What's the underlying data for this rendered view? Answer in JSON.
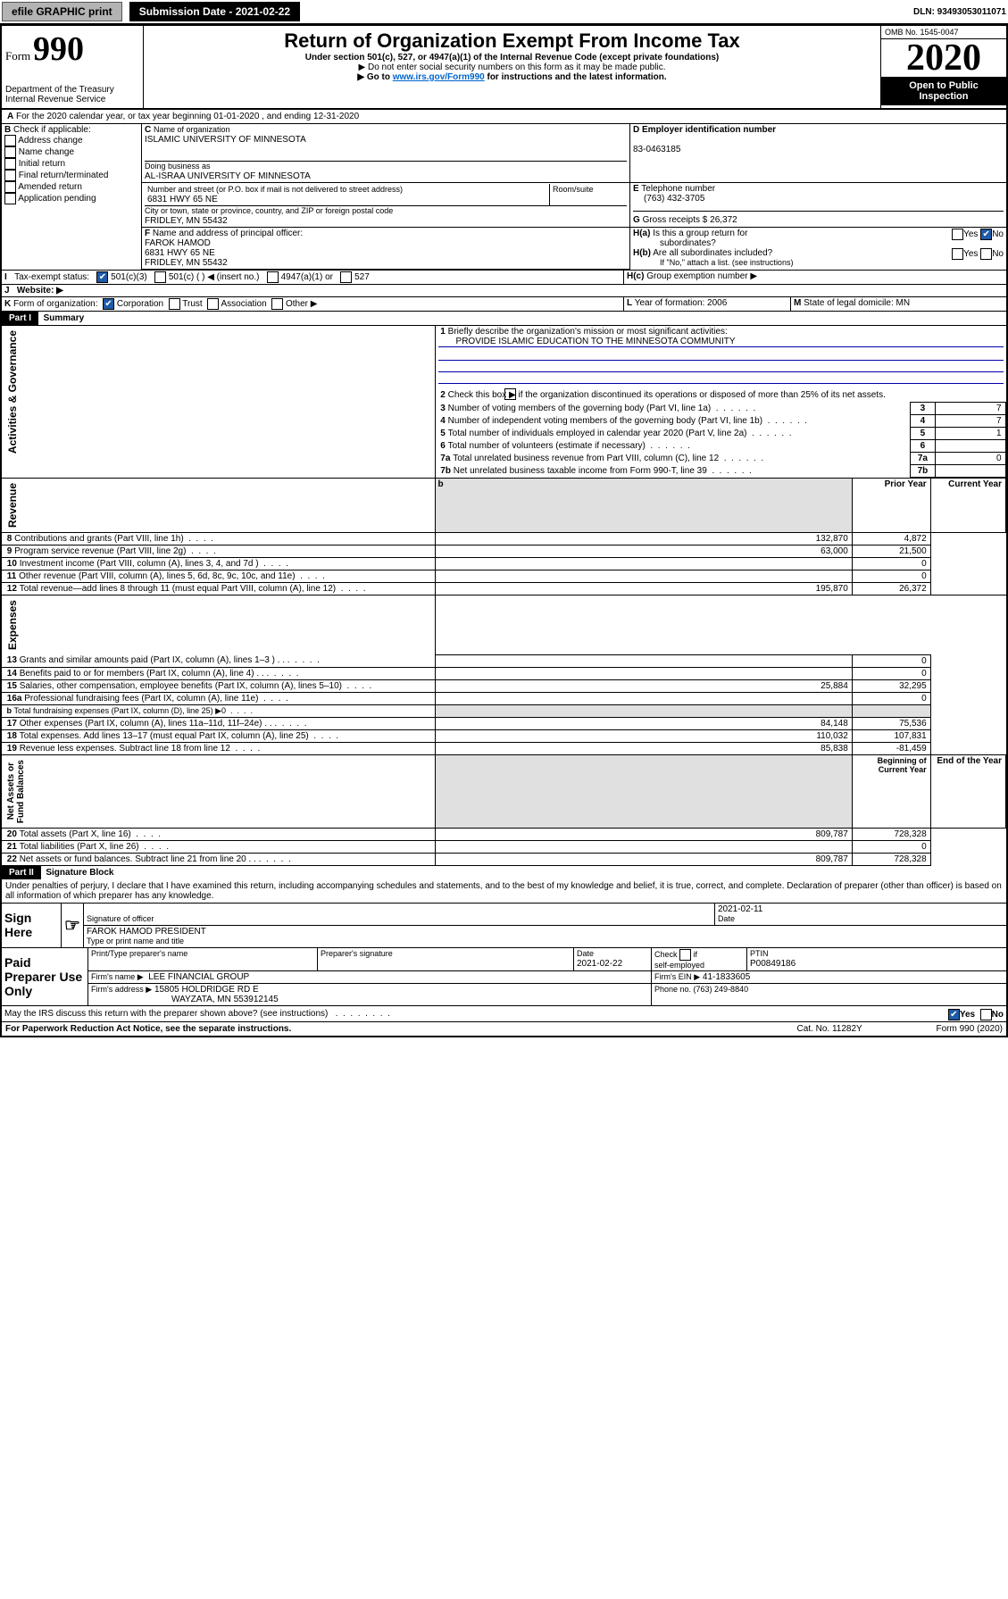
{
  "hdr": {
    "efile": "efile GRAPHIC print",
    "submission": "Submission Date - 2021-02-22",
    "dln": "DLN: 93493053011071"
  },
  "top": {
    "formNo": "990",
    "formWord": "Form",
    "title": "Return of Organization Exempt From Income Tax",
    "sub1": "Under section 501(c), 527, or 4947(a)(1) of the Internal Revenue Code (except private foundations)",
    "sub2": "▶ Do not enter social security numbers on this form as it may be made public.",
    "sub3a": "▶ Go to ",
    "sub3link": "www.irs.gov/Form990",
    "sub3b": " for instructions and the latest information.",
    "dept": "Department of the Treasury",
    "irs": "Internal Revenue Service",
    "omb": "OMB No. 1545-0047",
    "year": "2020",
    "open": "Open to Public",
    "insp": "Inspection"
  },
  "A": {
    "line": "For the 2020 calendar year, or tax year beginning 01-01-2020    , and ending 12-31-2020"
  },
  "B": {
    "hdr": "Check if applicable:",
    "opts": [
      "Address change",
      "Name change",
      "Initial return",
      "Final return/terminated",
      "Amended return",
      "Application pending"
    ]
  },
  "C": {
    "nameLbl": "Name of organization",
    "name": "ISLAMIC UNIVERSITY OF MINNESOTA",
    "dbaLbl": "Doing business as",
    "dba": "AL-ISRAA UNIVERSITY OF MINNESOTA",
    "addrLbl": "Number and street (or P.O. box if mail is not delivered to street address)",
    "room": "Room/suite",
    "addr": "6831 HWY 65 NE",
    "cityLbl": "City or town, state or province, country, and ZIP or foreign postal code",
    "city": "FRIDLEY, MN  55432"
  },
  "D": {
    "lbl": "Employer identification number",
    "val": "83-0463185"
  },
  "E": {
    "lbl": "Telephone number",
    "val": "(763) 432-3705"
  },
  "G": {
    "lbl": "Gross receipts $ 26,372"
  },
  "F": {
    "lbl": "Name and address of principal officer:",
    "name": "FAROK HAMOD",
    "addr1": "6831 HWY 65 NE",
    "addr2": "FRIDLEY, MN  55432"
  },
  "H": {
    "a": "Is this a group return for",
    "a2": "subordinates?",
    "b": "Are all subordinates included?",
    "c": "Group exemption number ▶",
    "ifno": "If \"No,\" attach a list. (see instructions)",
    "yes": "Yes",
    "no": "No"
  },
  "I": {
    "lbl": "Tax-exempt status:",
    "o1": "501(c)(3)",
    "o2": "501(c) (  ) ◀ (insert no.)",
    "o3": "4947(a)(1) or",
    "o4": "527"
  },
  "J": {
    "lbl": "Website: ▶"
  },
  "K": {
    "lbl": "Form of organization:",
    "o1": "Corporation",
    "o2": "Trust",
    "o3": "Association",
    "o4": "Other ▶"
  },
  "L": {
    "lbl": "Year of formation: 2006"
  },
  "M": {
    "lbl": "State of legal domicile: MN"
  },
  "p1": {
    "title": "Part I",
    "sub": "Summary",
    "l1": "Briefly describe the organization's mission or most significant activities:",
    "l1v": "PROVIDE ISLAMIC EDUCATION TO THE MINNESOTA COMMUNITY",
    "l2": "Check this box ▶        if the organization discontinued its operations or disposed of more than 25% of its net assets.",
    "rows": [
      {
        "n": "3",
        "t": "Number of voting members of the governing body (Part VI, line 1a)",
        "v": "7"
      },
      {
        "n": "4",
        "t": "Number of independent voting members of the governing body (Part VI, line 1b)",
        "v": "7"
      },
      {
        "n": "5",
        "t": "Total number of individuals employed in calendar year 2020 (Part V, line 2a)",
        "v": "1"
      },
      {
        "n": "6",
        "t": "Total number of volunteers (estimate if necessary)",
        "v": ""
      },
      {
        "n": "7a",
        "t": "Total unrelated business revenue from Part VIII, column (C), line 12",
        "v": "0"
      },
      {
        "n": "7b",
        "t": "Net unrelated business taxable income from Form 990-T, line 39",
        "v": ""
      }
    ],
    "colA": "Prior Year",
    "colB": "Current Year",
    "rev": [
      {
        "n": "8",
        "t": "Contributions and grants (Part VIII, line 1h)",
        "a": "132,870",
        "b": "4,872"
      },
      {
        "n": "9",
        "t": "Program service revenue (Part VIII, line 2g)",
        "a": "63,000",
        "b": "21,500"
      },
      {
        "n": "10",
        "t": "Investment income (Part VIII, column (A), lines 3, 4, and 7d )",
        "a": "",
        "b": "0"
      },
      {
        "n": "11",
        "t": "Other revenue (Part VIII, column (A), lines 5, 6d, 8c, 9c, 10c, and 11e)",
        "a": "",
        "b": "0"
      },
      {
        "n": "12",
        "t": "Total revenue—add lines 8 through 11 (must equal Part VIII, column (A), line 12)",
        "a": "195,870",
        "b": "26,372"
      }
    ],
    "exp": [
      {
        "n": "13",
        "t": "Grants and similar amounts paid (Part IX, column (A), lines 1–3 )   .    .    .",
        "a": "",
        "b": "0"
      },
      {
        "n": "14",
        "t": "Benefits paid to or for members (Part IX, column (A), line 4)   .    .    .",
        "a": "",
        "b": "0"
      },
      {
        "n": "15",
        "t": "Salaries, other compensation, employee benefits (Part IX, column (A), lines 5–10)",
        "a": "25,884",
        "b": "32,295"
      },
      {
        "n": "16a",
        "t": "Professional fundraising fees (Part IX, column (A), line 11e)",
        "a": "",
        "b": "0"
      },
      {
        "n": "b",
        "t": "Total fundraising expenses (Part IX, column (D), line 25) ▶0",
        "a": "grey",
        "b": "grey"
      },
      {
        "n": "17",
        "t": "Other expenses (Part IX, column (A), lines 11a–11d, 11f–24e)   .    .    .",
        "a": "84,148",
        "b": "75,536"
      },
      {
        "n": "18",
        "t": "Total expenses. Add lines 13–17 (must equal Part IX, column (A), line 25)",
        "a": "110,032",
        "b": "107,831"
      },
      {
        "n": "19",
        "t": "Revenue less expenses. Subtract line 18 from line 12",
        "a": "85,838",
        "b": "-81,459"
      }
    ],
    "colC": "Beginning of Current Year",
    "colD": "End of the Year",
    "net": [
      {
        "n": "20",
        "t": "Total assets (Part X, line 16)",
        "a": "809,787",
        "b": "728,328"
      },
      {
        "n": "21",
        "t": "Total liabilities (Part X, line 26)",
        "a": "",
        "b": "0"
      },
      {
        "n": "22",
        "t": "Net assets or fund balances. Subtract line 21 from line 20   .    .    .",
        "a": "809,787",
        "b": "728,328"
      }
    ]
  },
  "vlabs": {
    "ag": "Activities & Governance",
    "rev": "Revenue",
    "exp": "Expenses",
    "net": "Net Assets or\nFund Balances"
  },
  "p2": {
    "title": "Part II",
    "sub": "Signature Block",
    "decl": "Under penalties of perjury, I declare that I have examined this return, including accompanying schedules and statements, and to the best of my knowledge and belief, it is true, correct, and complete. Declaration of preparer (other than officer) is based on all information of which preparer has any knowledge."
  },
  "sign": {
    "here": "Sign Here",
    "sigoff": "Signature of officer",
    "date": "Date",
    "dateVal": "2021-02-11",
    "name": "FAROK HAMOD  PRESIDENT",
    "nameLbl": "Type or print name and title"
  },
  "paid": {
    "title": "Paid Preparer Use Only",
    "h1": "Print/Type preparer's name",
    "h2": "Preparer's signature",
    "h3": "Date",
    "h3v": "2021-02-22",
    "h4": "Check        if self-employed",
    "h5": "PTIN",
    "h5v": "P00849186",
    "firm": "Firm's name   ▶",
    "firmv": "LEE FINANCIAL GROUP",
    "ein": "Firm's EIN ▶",
    "einv": "41-1833605",
    "addr": "Firm's address ▶",
    "addrv": "15805 HOLDRIDGE RD E",
    "addrv2": "WAYZATA, MN  553912145",
    "phone": "Phone no. (763) 249-8840"
  },
  "bot": {
    "q": "May the IRS discuss this return with the preparer shown above? (see instructions)",
    "pra": "For Paperwork Reduction Act Notice, see the separate instructions.",
    "cat": "Cat. No. 11282Y",
    "form": "Form 990 (2020)"
  }
}
